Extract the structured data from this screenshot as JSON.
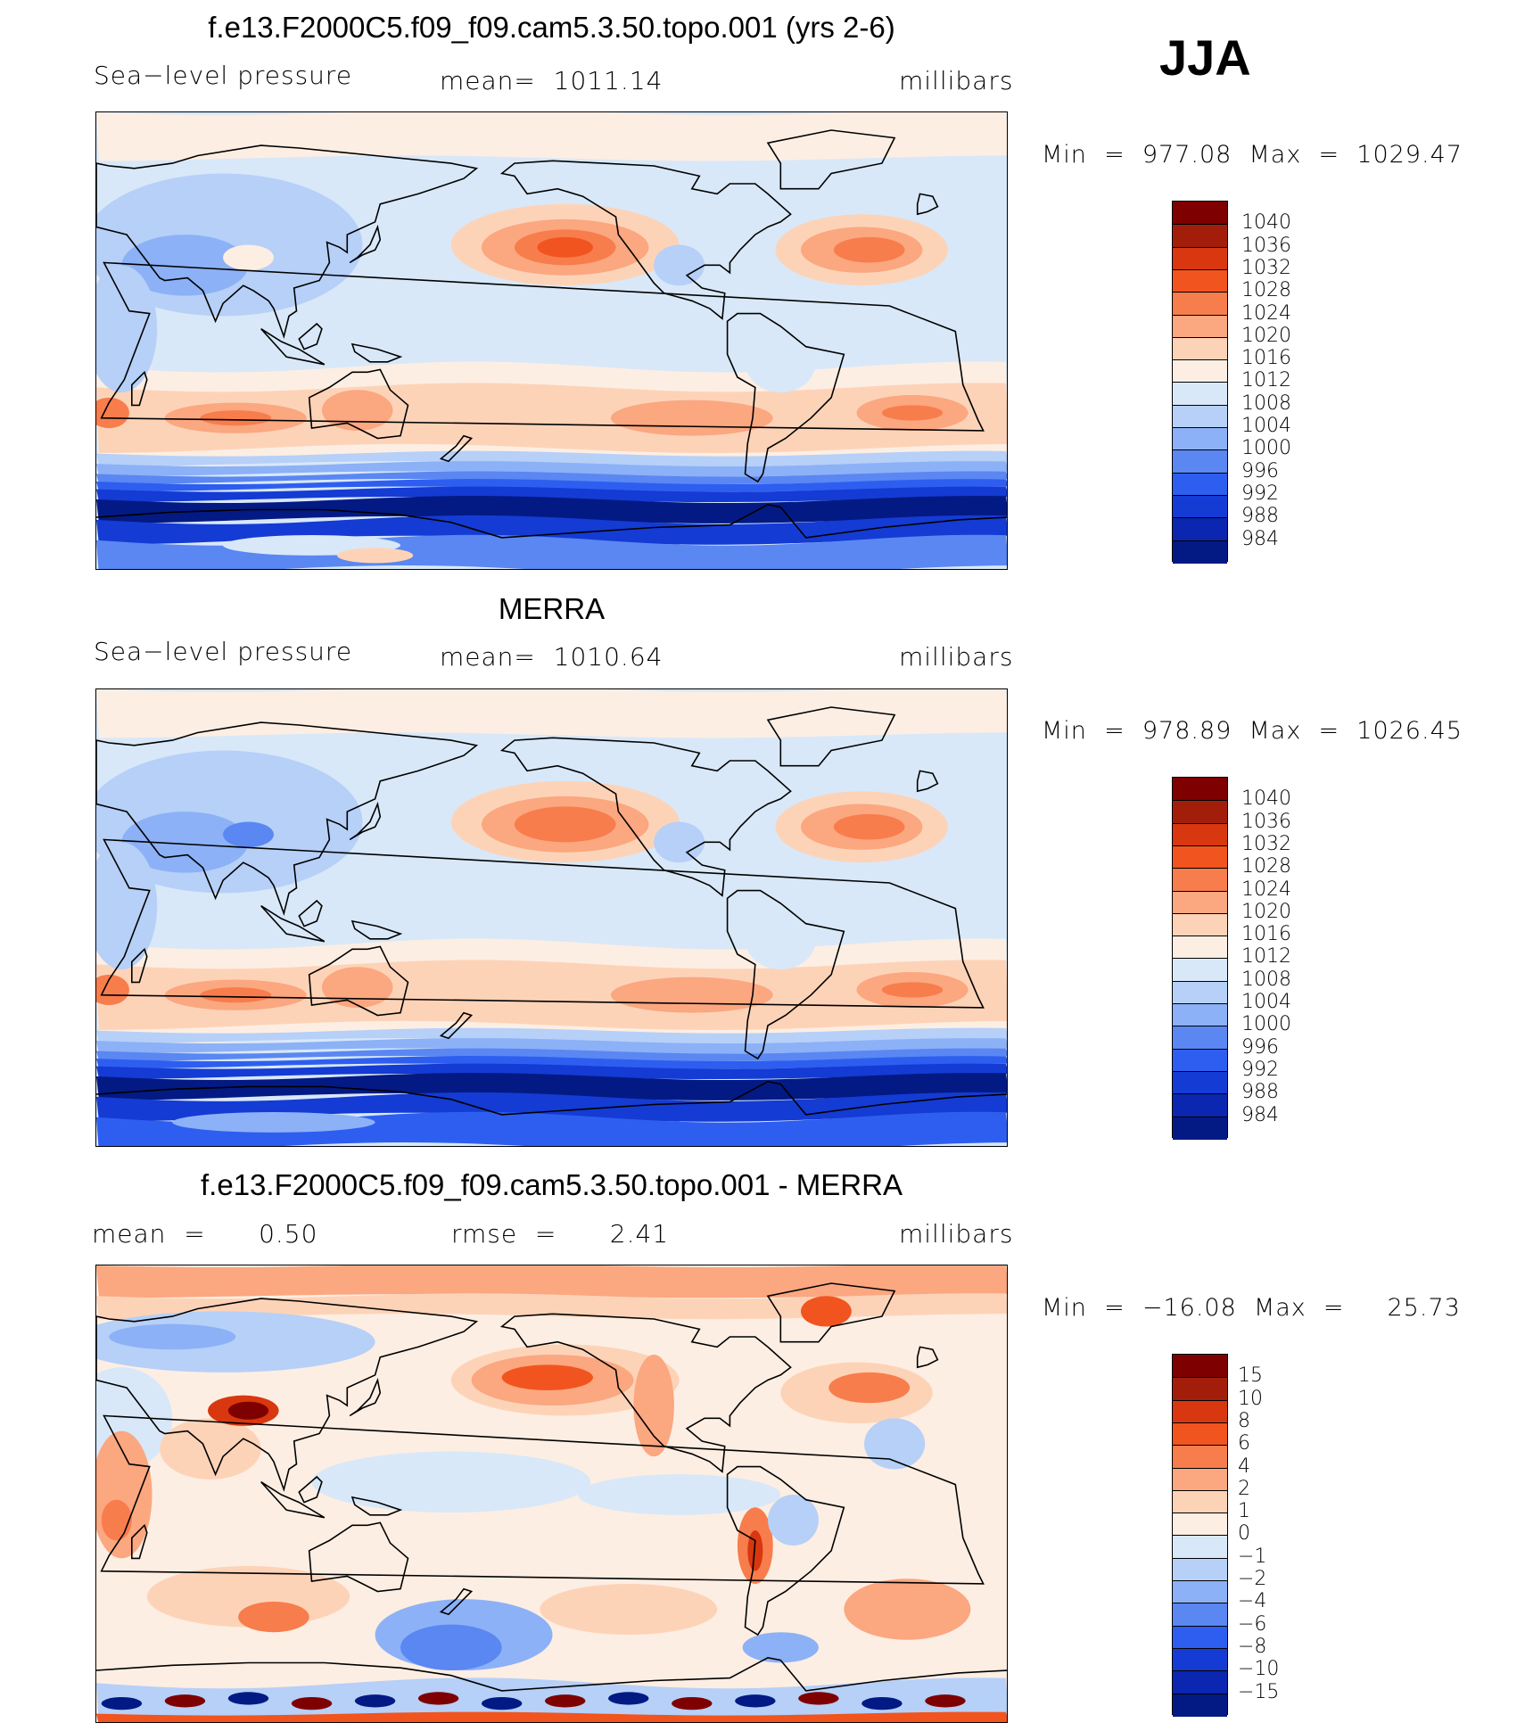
{
  "season": "JJA",
  "chart_data": [
    {
      "type": "heatmap",
      "title": "f.e13.F2000C5.f09_f09.cam5.3.50.topo.001 (yrs 2-6)",
      "left_label": "Sea−level pressure",
      "center_label": "mean=  1011.14",
      "right_label": "millibars",
      "min_max": "Min  =  977.08  Max  =  1029.47",
      "colorbar_levels": [
        "1040",
        "1036",
        "1032",
        "1028",
        "1024",
        "1020",
        "1016",
        "1012",
        "1008",
        "1004",
        "1000",
        "996",
        "992",
        "988",
        "984"
      ],
      "colorbar_colors": [
        "#7f0000",
        "#a31e0a",
        "#d8370f",
        "#f2541f",
        "#f87d4c",
        "#fba780",
        "#fdd3b8",
        "#fdeee3",
        "#d8e8f8",
        "#b6d0f8",
        "#8cb1f7",
        "#5a87f2",
        "#2e5ef0",
        "#143bd3",
        "#0b26b0",
        "#031a84"
      ],
      "fields": {
        "high_pacific": 1030,
        "high_atlantic": 1029,
        "high_s_indian": 1024,
        "high_s_pacific": 1022,
        "high_s_atlantic": 1026,
        "southern_ocean_low": 984
      }
    },
    {
      "type": "heatmap",
      "title": "MERRA",
      "left_label": "Sea−level pressure",
      "center_label": "mean=  1010.64",
      "right_label": "millibars",
      "min_max": "Min  =  978.89  Max  =  1026.45",
      "colorbar_levels": [
        "1040",
        "1036",
        "1032",
        "1028",
        "1024",
        "1020",
        "1016",
        "1012",
        "1008",
        "1004",
        "1000",
        "996",
        "992",
        "988",
        "984"
      ],
      "colorbar_colors": [
        "#7f0000",
        "#a31e0a",
        "#d8370f",
        "#f2541f",
        "#f87d4c",
        "#fba780",
        "#fdd3b8",
        "#fdeee3",
        "#d8e8f8",
        "#b6d0f8",
        "#8cb1f7",
        "#5a87f2",
        "#2e5ef0",
        "#143bd3",
        "#0b26b0",
        "#031a84"
      ],
      "fields": {
        "high_pacific": 1026,
        "high_atlantic": 1025,
        "high_s_indian": 1024,
        "high_s_pacific": 1022,
        "high_s_atlantic": 1023,
        "southern_ocean_low": 982
      }
    },
    {
      "type": "heatmap",
      "title": "f.e13.F2000C5.f09_f09.cam5.3.50.topo.001 - MERRA",
      "left_label": "mean  =      0.50",
      "center_label": "rmse  =      2.41",
      "right_label": "millibars",
      "min_max": "Min  =  −16.08  Max  =     25.73",
      "colorbar_levels": [
        "15",
        "10",
        "8",
        "6",
        "4",
        "2",
        "1",
        "0",
        "−1",
        "−2",
        "−4",
        "−6",
        "−8",
        "−10",
        "−15"
      ],
      "colorbar_colors": [
        "#7f0000",
        "#a31e0a",
        "#d8370f",
        "#f2541f",
        "#f87d4c",
        "#fba780",
        "#fdd3b8",
        "#fdeee3",
        "#d8e8f8",
        "#b6d0f8",
        "#8cb1f7",
        "#5a87f2",
        "#2e5ef0",
        "#143bd3",
        "#0b26b0",
        "#031a84"
      ],
      "fields": {
        "high_pacific": 6,
        "high_atlantic": 5,
        "tibet": 15,
        "andes": 8,
        "greenland": 8,
        "antarctic_coast": -15
      }
    }
  ]
}
